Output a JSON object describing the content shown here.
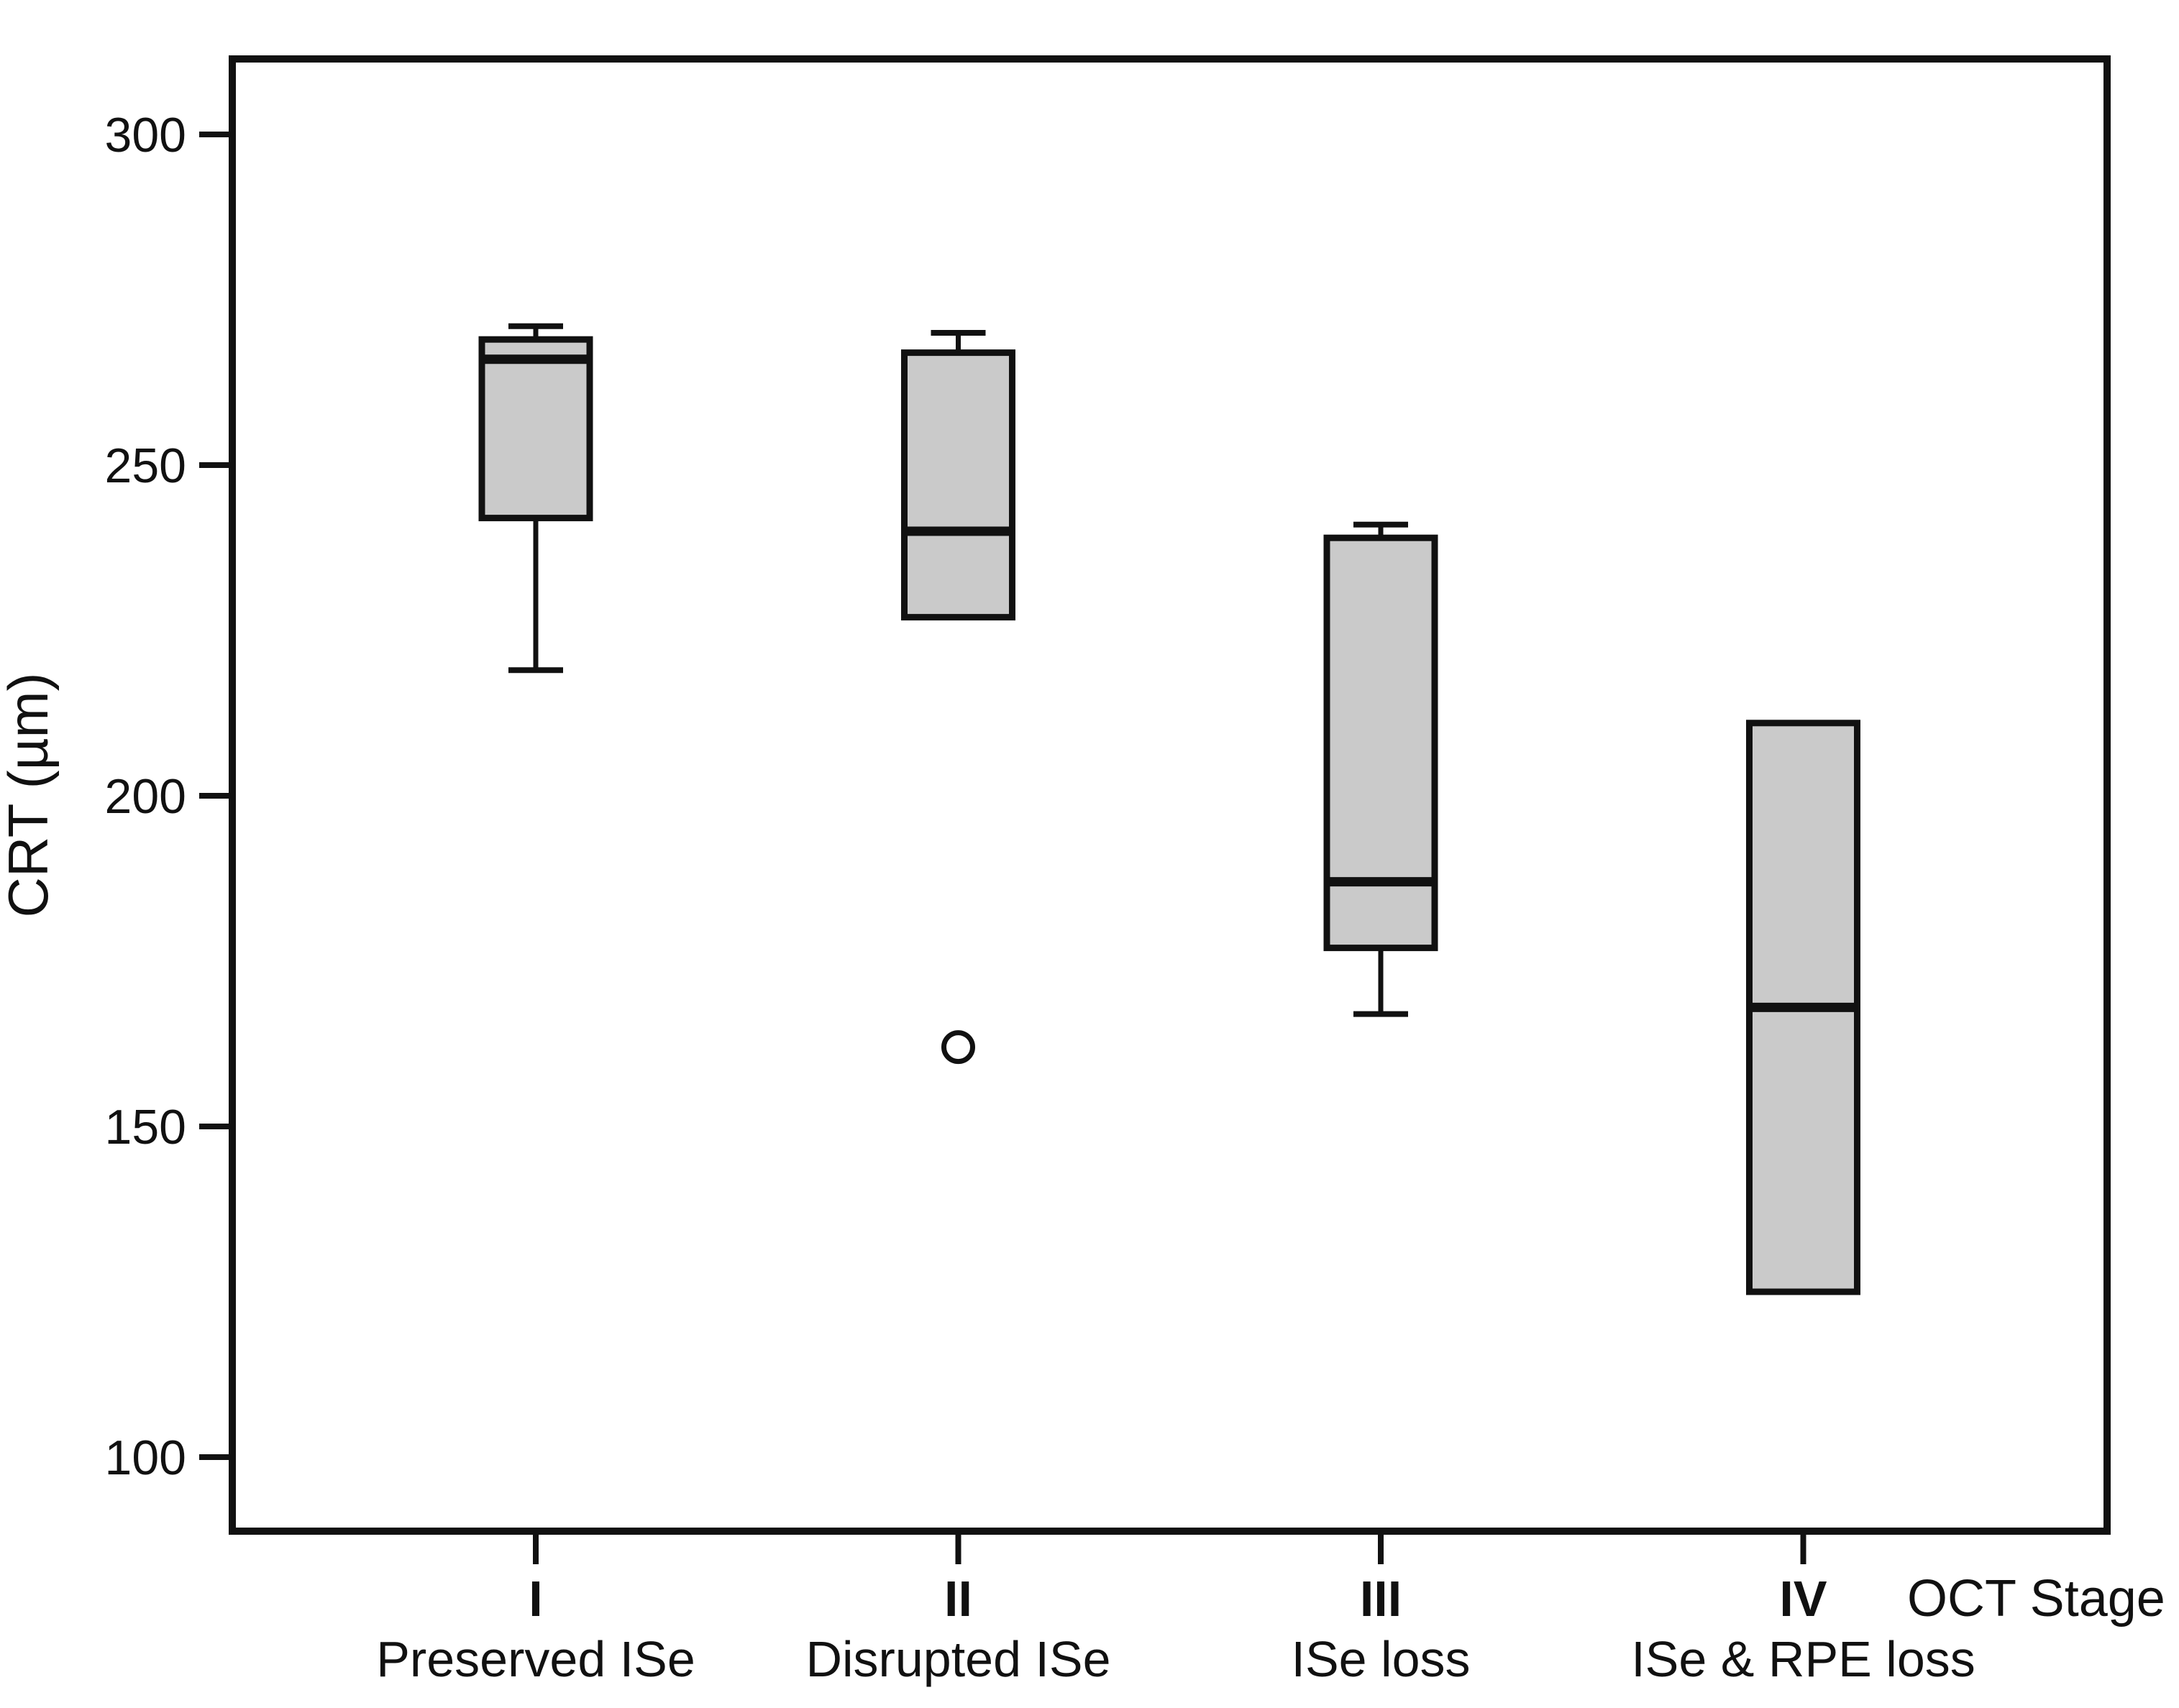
{
  "figure": {
    "y_axis_title": "CRT (µm)",
    "x_axis_title": "OCT Stage"
  },
  "chart_data": {
    "type": "boxplot",
    "title": "",
    "ylabel": "CRT (µm)",
    "xlabel": "OCT Stage",
    "ylim": [
      88,
      312
    ],
    "yticks": [
      100,
      150,
      200,
      250,
      300
    ],
    "grid": false,
    "legend": "none",
    "box_fill": "#cacaca",
    "line_color": "#000000",
    "outlier_fill": "#ffffff",
    "categories": [
      {
        "stage": "I",
        "label": "Preserved ISe"
      },
      {
        "stage": "II",
        "label": "Disrupted ISe"
      },
      {
        "stage": "III",
        "label": "ISe loss"
      },
      {
        "stage": "IV",
        "label": "ISe & RPE loss"
      }
    ],
    "series": [
      {
        "stage": "I",
        "whisker_low": 219,
        "q1": 242,
        "median": 266,
        "q3": 269,
        "whisker_high": 271,
        "outliers": []
      },
      {
        "stage": "II",
        "whisker_low": null,
        "q1": 227,
        "median": 240,
        "q3": 267,
        "whisker_high": 270,
        "outliers": [
          162
        ]
      },
      {
        "stage": "III",
        "whisker_low": 167,
        "q1": 177,
        "median": 187,
        "q3": 239,
        "whisker_high": 241,
        "outliers": []
      },
      {
        "stage": "IV",
        "whisker_low": null,
        "q1": 125,
        "median": 168,
        "q3": 211,
        "whisker_high": null,
        "outliers": []
      }
    ]
  }
}
